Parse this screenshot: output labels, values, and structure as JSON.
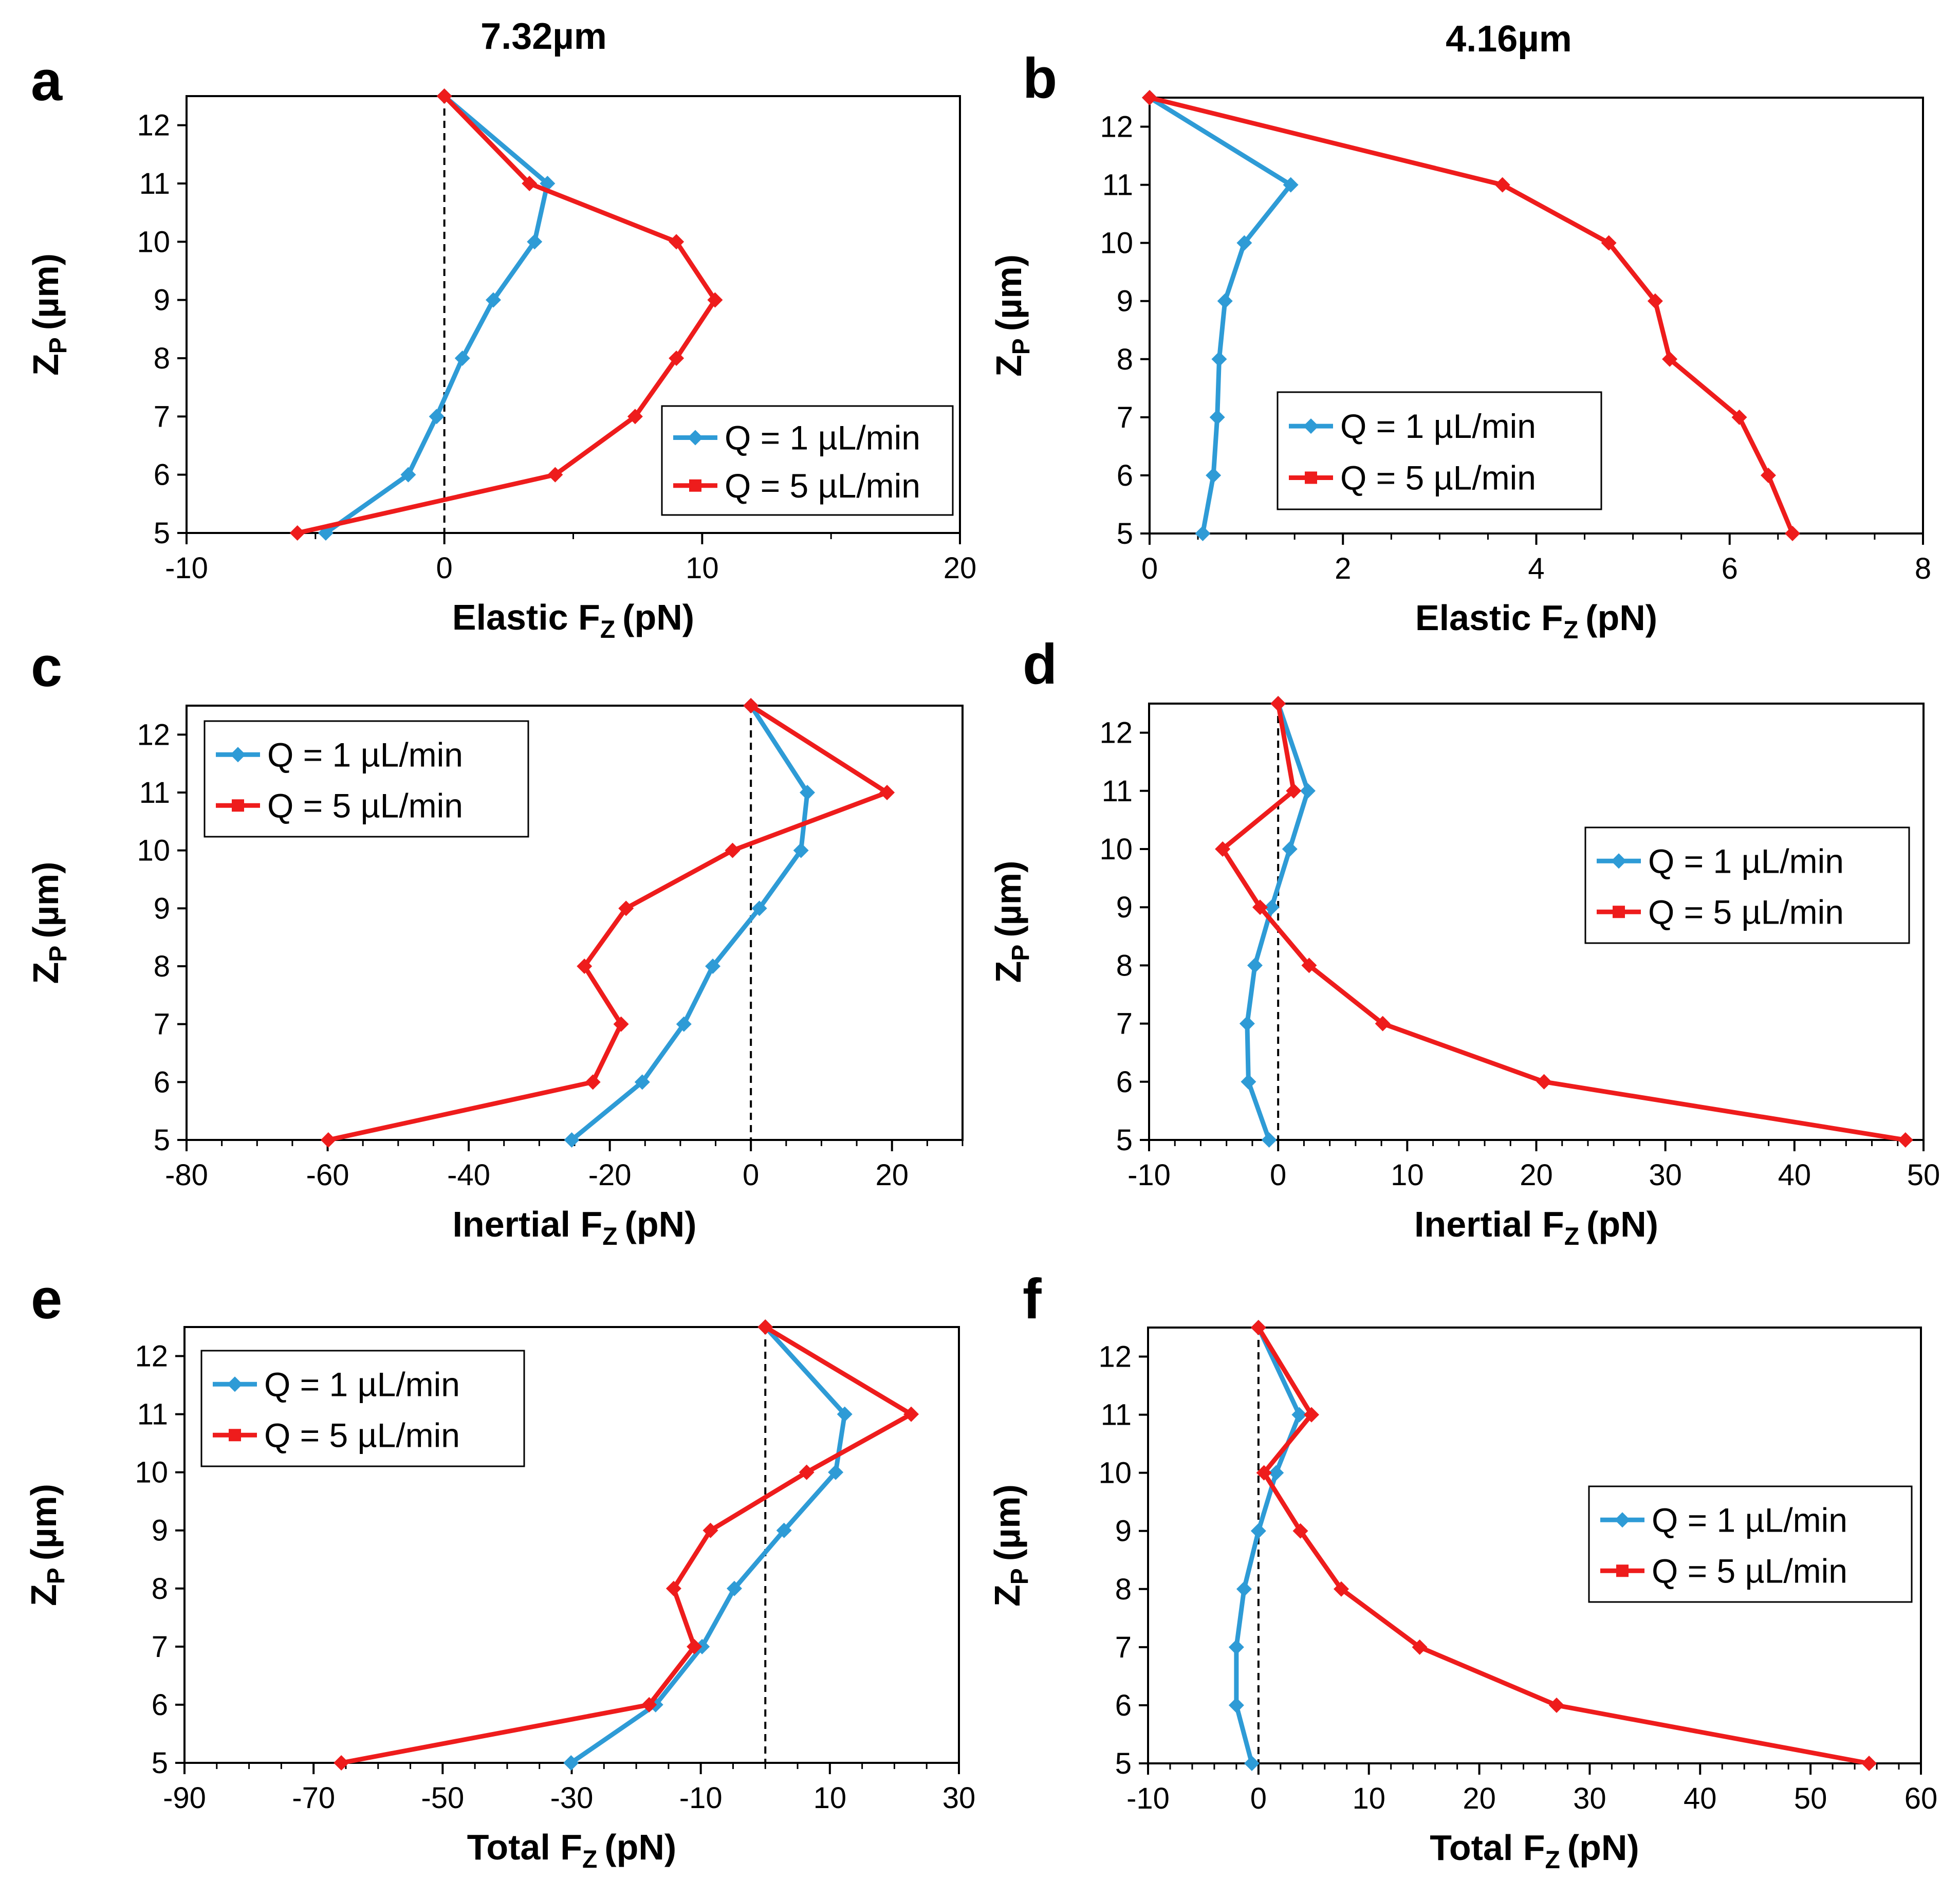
{
  "column_titles": [
    "7.32µm",
    "4.16µm"
  ],
  "colors": {
    "q1": "#2e9bd6",
    "q5": "#ee1c1c",
    "axis": "#000000",
    "zero_line": "#000000"
  },
  "chart_data": [
    {
      "type": "line",
      "panel": "a",
      "column_title": "7.32µm",
      "xlabel": "Elastic F",
      "xlabel_sub": "Z",
      "xlabel_unit": "(pN)",
      "ylabel": "Z",
      "ylabel_sub": "P",
      "ylabel_unit": "(µm)",
      "xlim": [
        -10,
        20
      ],
      "xticks": [
        -10,
        0,
        10,
        20
      ],
      "xminor": 5,
      "ylim": [
        5,
        12.5
      ],
      "yticks": [
        5,
        6,
        7,
        8,
        9,
        10,
        11,
        12
      ],
      "zero_line": true,
      "legend_position": "right-lower",
      "y": [
        12.5,
        11,
        10,
        9,
        8,
        7,
        6,
        5
      ],
      "series": [
        {
          "name": "Q = 1 µL/min",
          "color": "#2e9bd6",
          "marker": "diamond",
          "x": [
            0,
            4,
            3.5,
            1.9,
            0.7,
            -0.3,
            -1.4,
            -4.6
          ]
        },
        {
          "name": "Q = 5 µL/min",
          "color": "#ee1c1c",
          "marker": "square",
          "x": [
            0,
            3.3,
            9,
            10.5,
            9,
            7.4,
            4.3,
            -5.7
          ]
        }
      ]
    },
    {
      "type": "line",
      "panel": "b",
      "column_title": "4.16µm",
      "xlabel": "Elastic F",
      "xlabel_sub": "Z",
      "xlabel_unit": "(pN)",
      "ylabel": "Z",
      "ylabel_sub": "P",
      "ylabel_unit": "(µm)",
      "xlim": [
        0,
        8
      ],
      "xticks": [
        0,
        2,
        4,
        6,
        8
      ],
      "xminor": 0.5,
      "ylim": [
        5,
        12.5
      ],
      "yticks": [
        5,
        6,
        7,
        8,
        9,
        10,
        11,
        12
      ],
      "zero_line": false,
      "legend_position": "center-right",
      "y": [
        12.5,
        11,
        10,
        9,
        8,
        7,
        6,
        5
      ],
      "series": [
        {
          "name": "Q = 1 µL/min",
          "color": "#2e9bd6",
          "marker": "diamond",
          "x": [
            0,
            1.46,
            0.98,
            0.78,
            0.72,
            0.7,
            0.66,
            0.55
          ]
        },
        {
          "name": "Q = 5 µL/min",
          "color": "#ee1c1c",
          "marker": "square",
          "x": [
            0,
            3.65,
            4.75,
            5.23,
            5.38,
            6.1,
            6.4,
            6.65
          ]
        }
      ]
    },
    {
      "type": "line",
      "panel": "c",
      "xlabel": "Inertial F",
      "xlabel_sub": "Z",
      "xlabel_unit": "(pN)",
      "ylabel": "Z",
      "ylabel_sub": "P",
      "ylabel_unit": "(µm)",
      "xlim": [
        -80,
        30
      ],
      "xticks": [
        -80,
        -60,
        -40,
        -20,
        0,
        20
      ],
      "xminor": 5,
      "ylim": [
        5,
        12.5
      ],
      "yticks": [
        5,
        6,
        7,
        8,
        9,
        10,
        11,
        12
      ],
      "zero_line": true,
      "legend_position": "top-left",
      "y": [
        12.5,
        11,
        10,
        9,
        8,
        7,
        6,
        5
      ],
      "series": [
        {
          "name": "Q = 1 µL/min",
          "color": "#2e9bd6",
          "marker": "diamond",
          "x": [
            0,
            8,
            7.1,
            1.2,
            -5.4,
            -9.5,
            -15.4,
            -25.4
          ]
        },
        {
          "name": "Q = 5 µL/min",
          "color": "#ee1c1c",
          "marker": "square",
          "x": [
            0,
            19.3,
            -2.6,
            -17.7,
            -23.6,
            -18.4,
            -22.4,
            -59.9
          ]
        }
      ]
    },
    {
      "type": "line",
      "panel": "d",
      "xlabel": "Inertial F",
      "xlabel_sub": "Z",
      "xlabel_unit": "(pN)",
      "ylabel": "Z",
      "ylabel_sub": "P",
      "ylabel_unit": "(µm)",
      "xlim": [
        -10,
        50
      ],
      "xticks": [
        -10,
        0,
        10,
        20,
        30,
        40,
        50
      ],
      "xminor": 2,
      "ylim": [
        5,
        12.5
      ],
      "yticks": [
        5,
        6,
        7,
        8,
        9,
        10,
        11,
        12
      ],
      "zero_line": true,
      "legend_position": "upper-right",
      "y": [
        12.5,
        11,
        10,
        9,
        8,
        7,
        6,
        5
      ],
      "series": [
        {
          "name": "Q = 1 µL/min",
          "color": "#2e9bd6",
          "marker": "diamond",
          "x": [
            0,
            2.3,
            0.9,
            -0.5,
            -1.8,
            -2.4,
            -2.3,
            -0.7
          ]
        },
        {
          "name": "Q = 5 µL/min",
          "color": "#ee1c1c",
          "marker": "square",
          "x": [
            0,
            1.2,
            -4.3,
            -1.4,
            2.4,
            8.1,
            20.6,
            48.6
          ]
        }
      ]
    },
    {
      "type": "line",
      "panel": "e",
      "xlabel": "Total F",
      "xlabel_sub": "Z",
      "xlabel_unit": "(pN)",
      "ylabel": "Z",
      "ylabel_sub": "P",
      "ylabel_unit": "(µm)",
      "xlim": [
        -90,
        30
      ],
      "xticks": [
        -90,
        -70,
        -50,
        -30,
        -10,
        10,
        30
      ],
      "xminor": 5,
      "ylim": [
        5,
        12.5
      ],
      "yticks": [
        5,
        6,
        7,
        8,
        9,
        10,
        11,
        12
      ],
      "zero_line": true,
      "legend_position": "top-left",
      "y": [
        12.5,
        11,
        10,
        9,
        8,
        7,
        6,
        5
      ],
      "series": [
        {
          "name": "Q = 1 µL/min",
          "color": "#2e9bd6",
          "marker": "diamond",
          "x": [
            0,
            12.3,
            10.9,
            2.9,
            -4.8,
            -9.8,
            -17.0,
            -30.1
          ]
        },
        {
          "name": "Q = 5 µL/min",
          "color": "#ee1c1c",
          "marker": "square",
          "x": [
            0,
            22.6,
            6.4,
            -8.5,
            -14.2,
            -11.0,
            -18.0,
            -65.7
          ]
        }
      ]
    },
    {
      "type": "line",
      "panel": "f",
      "xlabel": "Total F",
      "xlabel_sub": "Z",
      "xlabel_unit": "(pN)",
      "ylabel": "Z",
      "ylabel_sub": "P",
      "ylabel_unit": "(µm)",
      "xlim": [
        -10,
        60
      ],
      "xticks": [
        -10,
        0,
        10,
        20,
        30,
        40,
        50,
        60
      ],
      "xminor": 2,
      "ylim": [
        5,
        12.5
      ],
      "yticks": [
        5,
        6,
        7,
        8,
        9,
        10,
        11,
        12
      ],
      "zero_line": true,
      "legend_position": "lower-right",
      "y": [
        12.5,
        11,
        10,
        9,
        8,
        7,
        6,
        5
      ],
      "series": [
        {
          "name": "Q = 1 µL/min",
          "color": "#2e9bd6",
          "marker": "diamond",
          "x": [
            0,
            3.7,
            1.6,
            0,
            -1.3,
            -2.0,
            -2.0,
            -0.6
          ]
        },
        {
          "name": "Q = 5 µL/min",
          "color": "#ee1c1c",
          "marker": "square",
          "x": [
            0,
            4.8,
            0.5,
            3.8,
            7.5,
            14.6,
            27.0,
            55.3
          ]
        }
      ]
    }
  ]
}
